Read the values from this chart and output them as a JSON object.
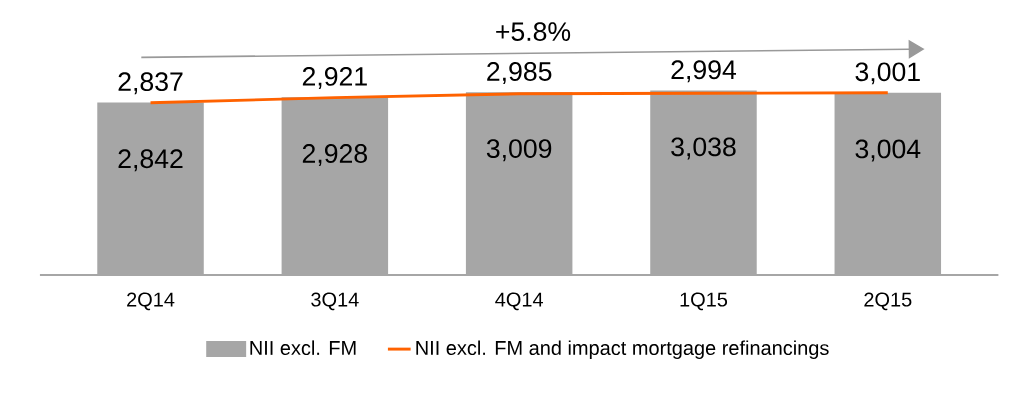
{
  "chart_data": {
    "type": "bar",
    "categories": [
      "2Q14",
      "3Q14",
      "4Q14",
      "1Q15",
      "2Q15"
    ],
    "series": [
      {
        "name": "NII excl. FM",
        "color": "#a6a6a6",
        "values": [
          2842,
          2928,
          3009,
          3038,
          3004
        ],
        "value_labels": [
          "2,842",
          "2,928",
          "3,009",
          "3,038",
          "3,004"
        ]
      },
      {
        "name": "NII excl. FM and impact mortgage refinancings",
        "type": "line",
        "color": "#ff6200",
        "values": [
          2837,
          2921,
          2985,
          2994,
          3001
        ],
        "value_labels": [
          "2,837",
          "2,921",
          "2,985",
          "2,994",
          "3,001"
        ]
      }
    ],
    "legend": "bottom",
    "annotations": [
      "+5.8%"
    ]
  }
}
